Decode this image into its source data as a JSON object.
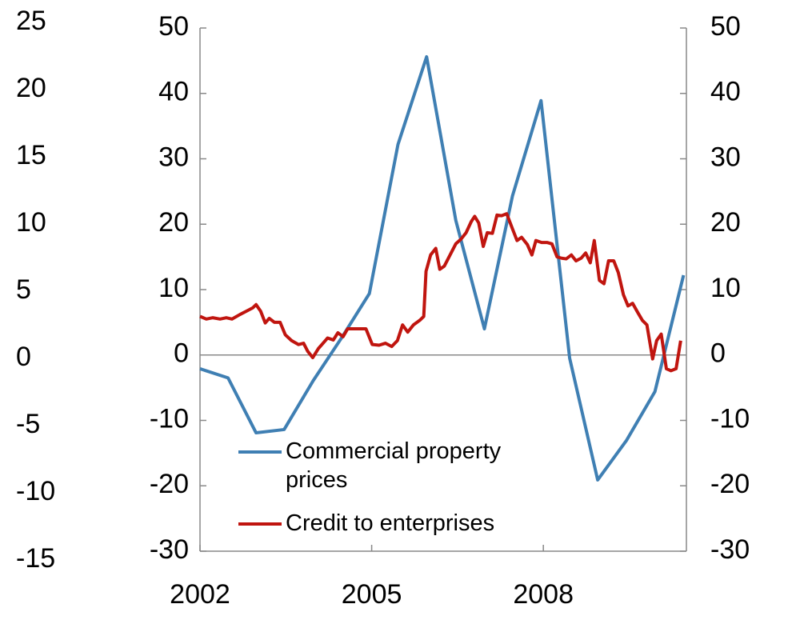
{
  "chart_data": {
    "type": "line",
    "xlim": [
      2002,
      2010.5
    ],
    "xticks": [
      2002,
      2005,
      2008
    ],
    "ylim": [
      -30,
      50
    ],
    "yticks": [
      -30,
      -20,
      -10,
      0,
      10,
      20,
      30,
      40,
      50
    ],
    "y2lim": [
      -30,
      50
    ],
    "y2ticks": [
      -30,
      -20,
      -10,
      0,
      10,
      20,
      30,
      40,
      50
    ],
    "y3lim": [
      -15,
      25
    ],
    "y3ticks": [
      -15,
      -10,
      -5,
      0,
      5,
      10,
      15,
      20,
      25
    ],
    "legend": "lower left",
    "series": [
      {
        "name": "Commercial property prices",
        "color": "#3f7fb3",
        "x": [
          2002.0,
          2002.49,
          2002.98,
          2003.47,
          2003.98,
          2004.48,
          2004.96,
          2005.46,
          2005.96,
          2006.47,
          2006.97,
          2007.46,
          2007.96,
          2008.46,
          2008.95,
          2009.45,
          2009.95,
          2010.45
        ],
        "values": [
          -2.1,
          -3.5,
          -11.9,
          -11.4,
          -3.9,
          2.7,
          9.4,
          32.2,
          45.6,
          20.6,
          4.0,
          24.3,
          38.9,
          -0.5,
          -19.1,
          -13.1,
          -5.6,
          12.2
        ]
      },
      {
        "name": "Credit to enterprises",
        "color": "#c0150f",
        "x": [
          2002.0,
          2002.11,
          2002.22,
          2002.35,
          2002.46,
          2002.56,
          2002.7,
          2002.81,
          2002.92,
          2002.98,
          2003.06,
          2003.14,
          2003.21,
          2003.3,
          2003.4,
          2003.49,
          2003.6,
          2003.72,
          2003.81,
          2003.88,
          2003.97,
          2004.07,
          2004.15,
          2004.23,
          2004.33,
          2004.41,
          2004.5,
          2004.58,
          2004.72,
          2004.9,
          2005.01,
          2005.13,
          2005.24,
          2005.35,
          2005.45,
          2005.54,
          2005.63,
          2005.73,
          2005.84,
          2005.91,
          2005.95,
          2006.03,
          2006.12,
          2006.19,
          2006.27,
          2006.37,
          2006.47,
          2006.56,
          2006.65,
          2006.74,
          2006.8,
          2006.87,
          2006.95,
          2007.02,
          2007.11,
          2007.19,
          2007.27,
          2007.36,
          2007.46,
          2007.54,
          2007.62,
          2007.72,
          2007.8,
          2007.87,
          2007.97,
          2008.07,
          2008.15,
          2008.24,
          2008.32,
          2008.4,
          2008.49,
          2008.57,
          2008.66,
          2008.74,
          2008.82,
          2008.89,
          2008.98,
          2009.06,
          2009.14,
          2009.23,
          2009.31,
          2009.4,
          2009.48,
          2009.56,
          2009.65,
          2009.73,
          2009.81,
          2009.91,
          2009.98,
          2010.06,
          2010.15,
          2010.23,
          2010.32,
          2010.4
        ],
        "values": [
          5.9,
          5.5,
          5.7,
          5.5,
          5.7,
          5.5,
          6.2,
          6.7,
          7.2,
          7.7,
          6.7,
          4.9,
          5.6,
          5.0,
          5.0,
          3.1,
          2.2,
          1.6,
          1.8,
          0.6,
          -0.4,
          1.0,
          1.8,
          2.6,
          2.3,
          3.4,
          2.8,
          4.0,
          4.0,
          4.0,
          1.6,
          1.5,
          1.8,
          1.3,
          2.2,
          4.6,
          3.5,
          4.6,
          5.3,
          5.9,
          12.8,
          15.3,
          16.3,
          13.1,
          13.6,
          15.3,
          17.0,
          17.7,
          18.7,
          20.4,
          21.2,
          20.2,
          16.6,
          18.7,
          18.6,
          21.4,
          21.3,
          21.6,
          19.3,
          17.5,
          18.0,
          16.9,
          15.3,
          17.5,
          17.2,
          17.2,
          17.0,
          15.0,
          14.8,
          14.7,
          15.3,
          14.4,
          14.8,
          15.6,
          14.1,
          17.5,
          11.4,
          10.9,
          14.4,
          14.4,
          12.6,
          9.2,
          7.5,
          7.9,
          6.5,
          5.3,
          4.6,
          -0.6,
          2.2,
          3.2,
          -2.1,
          -2.4,
          -2.1,
          2.2
        ]
      }
    ]
  }
}
